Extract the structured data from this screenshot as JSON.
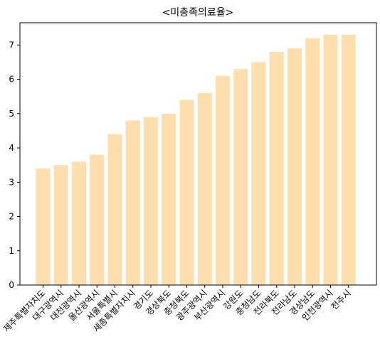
{
  "chart_data": {
    "type": "bar",
    "title": "<미충족의료율>",
    "xlabel": "",
    "ylabel": "",
    "categories": [
      "제주특별자치도",
      "대구광역시",
      "대전광역시",
      "울산광역시",
      "서울특별시",
      "세종특별자치시",
      "경기도",
      "경상북도",
      "충청북도",
      "광주광역시",
      "부산광역시",
      "강원도",
      "충청남도",
      "전라북도",
      "전라남도",
      "경상남도",
      "인천광역시",
      "전주시"
    ],
    "values": [
      3.4,
      3.5,
      3.6,
      3.8,
      4.4,
      4.8,
      4.9,
      5.0,
      5.4,
      5.6,
      6.1,
      6.3,
      6.5,
      6.8,
      6.9,
      7.2,
      7.3,
      7.3
    ],
    "ylim": [
      0,
      7.65
    ],
    "yticks": [
      0,
      1,
      2,
      3,
      4,
      5,
      6,
      7
    ],
    "bar_color": "#ffdead",
    "grid": false,
    "legend": "none"
  }
}
